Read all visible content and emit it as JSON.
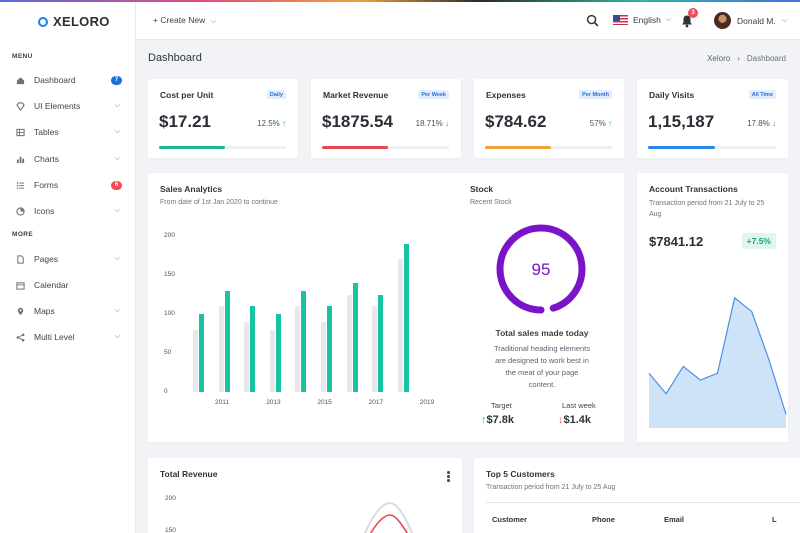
{
  "app": {
    "name": "XELORO"
  },
  "sidebar": {
    "menu_label": "MENU",
    "more_label": "MORE",
    "items": [
      {
        "label": "Dashboard",
        "badge": "7"
      },
      {
        "label": "UI Elements"
      },
      {
        "label": "Tables"
      },
      {
        "label": "Charts"
      },
      {
        "label": "Forms",
        "badge": "6"
      },
      {
        "label": "Icons"
      }
    ],
    "more_items": [
      {
        "label": "Pages"
      },
      {
        "label": "Calendar"
      },
      {
        "label": "Maps"
      },
      {
        "label": "Multi Level"
      }
    ]
  },
  "header": {
    "create_new": "+ Create New",
    "language": "English",
    "notifications_count": "3",
    "user_name": "Donald M."
  },
  "page": {
    "title": "Dashboard",
    "breadcrumb": [
      "Xeloro",
      "Dashboard"
    ]
  },
  "stats": [
    {
      "title": "Cost per Unit",
      "tag": "Daily",
      "value": "$17.21",
      "pct": "12.5%",
      "trend": "up",
      "progress": 0.52,
      "color": "#1fb48f"
    },
    {
      "title": "Market Revenue",
      "tag": "Per Week",
      "value": "$1875.54",
      "pct": "18.71%",
      "trend": "down",
      "progress": 0.52,
      "color": "#e8474f"
    },
    {
      "title": "Expenses",
      "tag": "Per Month",
      "value": "$784.62",
      "pct": "57%",
      "trend": "up",
      "progress": 0.52,
      "color": "#f0a13c"
    },
    {
      "title": "Daily Visits",
      "tag": "All Time",
      "value": "1,15,187",
      "pct": "17.8%",
      "trend": "down",
      "progress": 0.52,
      "color": "#2b86e8"
    }
  ],
  "sales": {
    "title": "Sales Analytics",
    "subtitle": "From date of 1st Jan 2020 to continue"
  },
  "chart_data": {
    "type": "bar",
    "categories": [
      "2011",
      "2012",
      "2013",
      "2014",
      "2015",
      "2016",
      "2017",
      "2018",
      "2019"
    ],
    "x_tick_labels": [
      "2011",
      "2013",
      "2015",
      "2017",
      "2019"
    ],
    "series": [
      {
        "values": [
          80,
          110,
          90,
          80,
          110,
          90,
          125,
          110,
          170
        ]
      },
      {
        "values": [
          100,
          130,
          110,
          100,
          130,
          110,
          140,
          125,
          190
        ]
      }
    ],
    "colors": [
      "#e6e8ec",
      "#17c3a3"
    ],
    "ylim": [
      0,
      200
    ],
    "yticks": [
      0,
      50,
      100,
      150,
      200
    ]
  },
  "stock": {
    "title": "Stock",
    "subtitle": "Recent Stock",
    "value": "95",
    "fraction": 0.95,
    "heading": "Total sales made today",
    "desc": [
      "Traditional heading elements",
      "are designed to work best in",
      "the meat of your page",
      "content."
    ],
    "target_label": "Target",
    "target_value": "$7.8k",
    "last_label": "Last week",
    "last_value": "$1.4k",
    "ring_color": "#7b14c9"
  },
  "account": {
    "title": "Account Transactions",
    "subtitle": "Transaction period from 21 July to 25 Aug",
    "value": "$7841.12",
    "badge": "+7.5%",
    "area_values": [
      40,
      25,
      45,
      35,
      40,
      95,
      85,
      50,
      10
    ]
  },
  "revenue": {
    "title": "Total Revenue",
    "yticks": [
      "200",
      "150"
    ]
  },
  "customers": {
    "title": "Top 5 Customers",
    "subtitle": "Transaction period from 21 July to 25 Aug",
    "columns": [
      "Customer",
      "Phone",
      "Email",
      "L"
    ]
  }
}
